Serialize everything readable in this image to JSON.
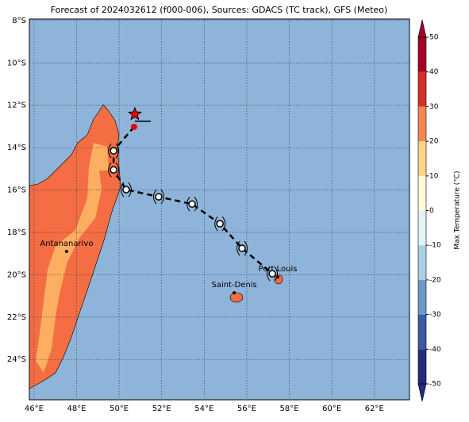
{
  "title": "Forecast of 2024032612 (f000-006), Sources: GDACS (TC track), GFS (Meteo)",
  "map": {
    "xlim": [
      45.78,
      63.65
    ],
    "ylim": [
      -25.9,
      -7.93
    ],
    "xticks": [
      {
        "value": 46,
        "label": "46°E"
      },
      {
        "value": 48,
        "label": "48°E"
      },
      {
        "value": 50,
        "label": "50°E"
      },
      {
        "value": 52,
        "label": "52°E"
      },
      {
        "value": 54,
        "label": "54°E"
      },
      {
        "value": 56,
        "label": "56°E"
      },
      {
        "value": 58,
        "label": "58°E"
      },
      {
        "value": 60,
        "label": "60°E"
      },
      {
        "value": 62,
        "label": "62°E"
      }
    ],
    "yticks": [
      {
        "value": -8,
        "label": "8°S"
      },
      {
        "value": -10,
        "label": "10°S"
      },
      {
        "value": -12,
        "label": "12°S"
      },
      {
        "value": -14,
        "label": "14°S"
      },
      {
        "value": -16,
        "label": "16°S"
      },
      {
        "value": -18,
        "label": "18°S"
      },
      {
        "value": -20,
        "label": "20°S"
      },
      {
        "value": -22,
        "label": "22°S"
      },
      {
        "value": -24,
        "label": "24°S"
      }
    ],
    "grid": true
  },
  "places": [
    {
      "name": "Antananarivo",
      "lon": 47.53,
      "lat": -18.9
    },
    {
      "name": "Saint-Denis",
      "lon": 55.41,
      "lat": -20.85
    },
    {
      "name": "Port Louis",
      "lon": 57.46,
      "lat": -20.1
    }
  ],
  "track": {
    "current": {
      "lon": 50.74,
      "lat": -12.42
    },
    "lon": [
      50.7,
      49.74,
      49.74,
      50.33,
      51.86,
      53.43,
      54.74,
      55.78,
      57.2
    ],
    "lat": [
      -13.02,
      -14.15,
      -15.05,
      -15.98,
      -16.32,
      -16.66,
      -17.59,
      -18.75,
      -19.95
    ]
  },
  "colorbar": {
    "label": "Max Temperature (°C)",
    "lim": [
      -50,
      50
    ],
    "ticks": [
      -50,
      -40,
      -30,
      -20,
      -10,
      0,
      10,
      20,
      30,
      40,
      50
    ],
    "colors": [
      "#262a7f",
      "#3a5ba6",
      "#6a9ac8",
      "#a9d0e5",
      "#e3f3f6",
      "#fefbd6",
      "#fdd58a",
      "#f7864f",
      "#d63027",
      "#a50026"
    ]
  }
}
